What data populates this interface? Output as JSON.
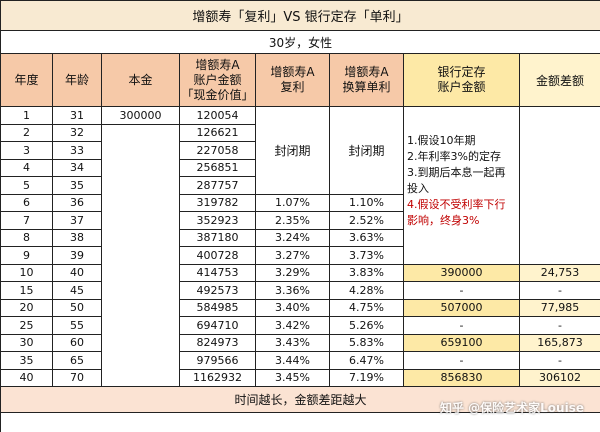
{
  "title": "增额寿「复利」VS 银行定存「单利」",
  "subtitle": "30岁，女性",
  "headers": [
    "年度",
    "年龄",
    "本金",
    "增额寿A\n账户金额\n「现金价值」",
    "增额寿A\n复利",
    "增额寿A\n换算单利",
    "银行定存\n账户金额",
    "金额差额"
  ],
  "principal": "300000",
  "lock_period_a": "封闭期",
  "lock_period_b": "封闭期",
  "notes": [
    "1.假设10年期",
    "2.年利率3%的定存",
    "3.到期后本息一起再投入",
    "4.假设不受利率下行影响，终身3%"
  ],
  "rows": [
    {
      "year": "1",
      "age": "31",
      "cash": "120054",
      "compound": "",
      "simple": "",
      "bank": "",
      "diff": ""
    },
    {
      "year": "2",
      "age": "32",
      "cash": "126621",
      "compound": "",
      "simple": "",
      "bank": "",
      "diff": ""
    },
    {
      "year": "3",
      "age": "33",
      "cash": "227058",
      "compound": "",
      "simple": "",
      "bank": "",
      "diff": ""
    },
    {
      "year": "4",
      "age": "34",
      "cash": "256851",
      "compound": "",
      "simple": "",
      "bank": "",
      "diff": ""
    },
    {
      "year": "5",
      "age": "35",
      "cash": "287757",
      "compound": "",
      "simple": "",
      "bank": "",
      "diff": ""
    },
    {
      "year": "6",
      "age": "36",
      "cash": "319782",
      "compound": "1.07%",
      "simple": "1.10%",
      "bank": "",
      "diff": ""
    },
    {
      "year": "7",
      "age": "37",
      "cash": "352923",
      "compound": "2.35%",
      "simple": "2.52%",
      "bank": "",
      "diff": ""
    },
    {
      "year": "8",
      "age": "38",
      "cash": "387180",
      "compound": "3.24%",
      "simple": "3.63%",
      "bank": "",
      "diff": ""
    },
    {
      "year": "9",
      "age": "39",
      "cash": "400728",
      "compound": "3.27%",
      "simple": "3.73%",
      "bank": "",
      "diff": ""
    },
    {
      "year": "10",
      "age": "40",
      "cash": "414753",
      "compound": "3.29%",
      "simple": "3.83%",
      "bank": "390000",
      "diff": "24,753"
    },
    {
      "year": "15",
      "age": "45",
      "cash": "492573",
      "compound": "3.36%",
      "simple": "4.28%",
      "bank": "-",
      "diff": "-"
    },
    {
      "year": "20",
      "age": "50",
      "cash": "584985",
      "compound": "3.40%",
      "simple": "4.75%",
      "bank": "507000",
      "diff": "77,985"
    },
    {
      "year": "25",
      "age": "55",
      "cash": "694710",
      "compound": "3.42%",
      "simple": "5.26%",
      "bank": "-",
      "diff": "-"
    },
    {
      "year": "30",
      "age": "60",
      "cash": "824973",
      "compound": "3.43%",
      "simple": "5.83%",
      "bank": "659100",
      "diff": "165,873"
    },
    {
      "year": "35",
      "age": "65",
      "cash": "979566",
      "compound": "3.44%",
      "simple": "6.47%",
      "bank": "-",
      "diff": "-"
    },
    {
      "year": "40",
      "age": "70",
      "cash": "1162932",
      "compound": "3.45%",
      "simple": "7.19%",
      "bank": "856830",
      "diff": "306102"
    }
  ],
  "footer": "时间越长，金额差距越大",
  "watermark": "知乎 @保险艺术家Louise",
  "colors": {
    "title_bg": "#f8ead2",
    "header_bg": "#f6c9a8",
    "bank_header_bg": "#fde9a6",
    "highlight_bg": "#fde9a6",
    "footer_bg": "#fbe3d3",
    "note_red": "#c00000"
  }
}
